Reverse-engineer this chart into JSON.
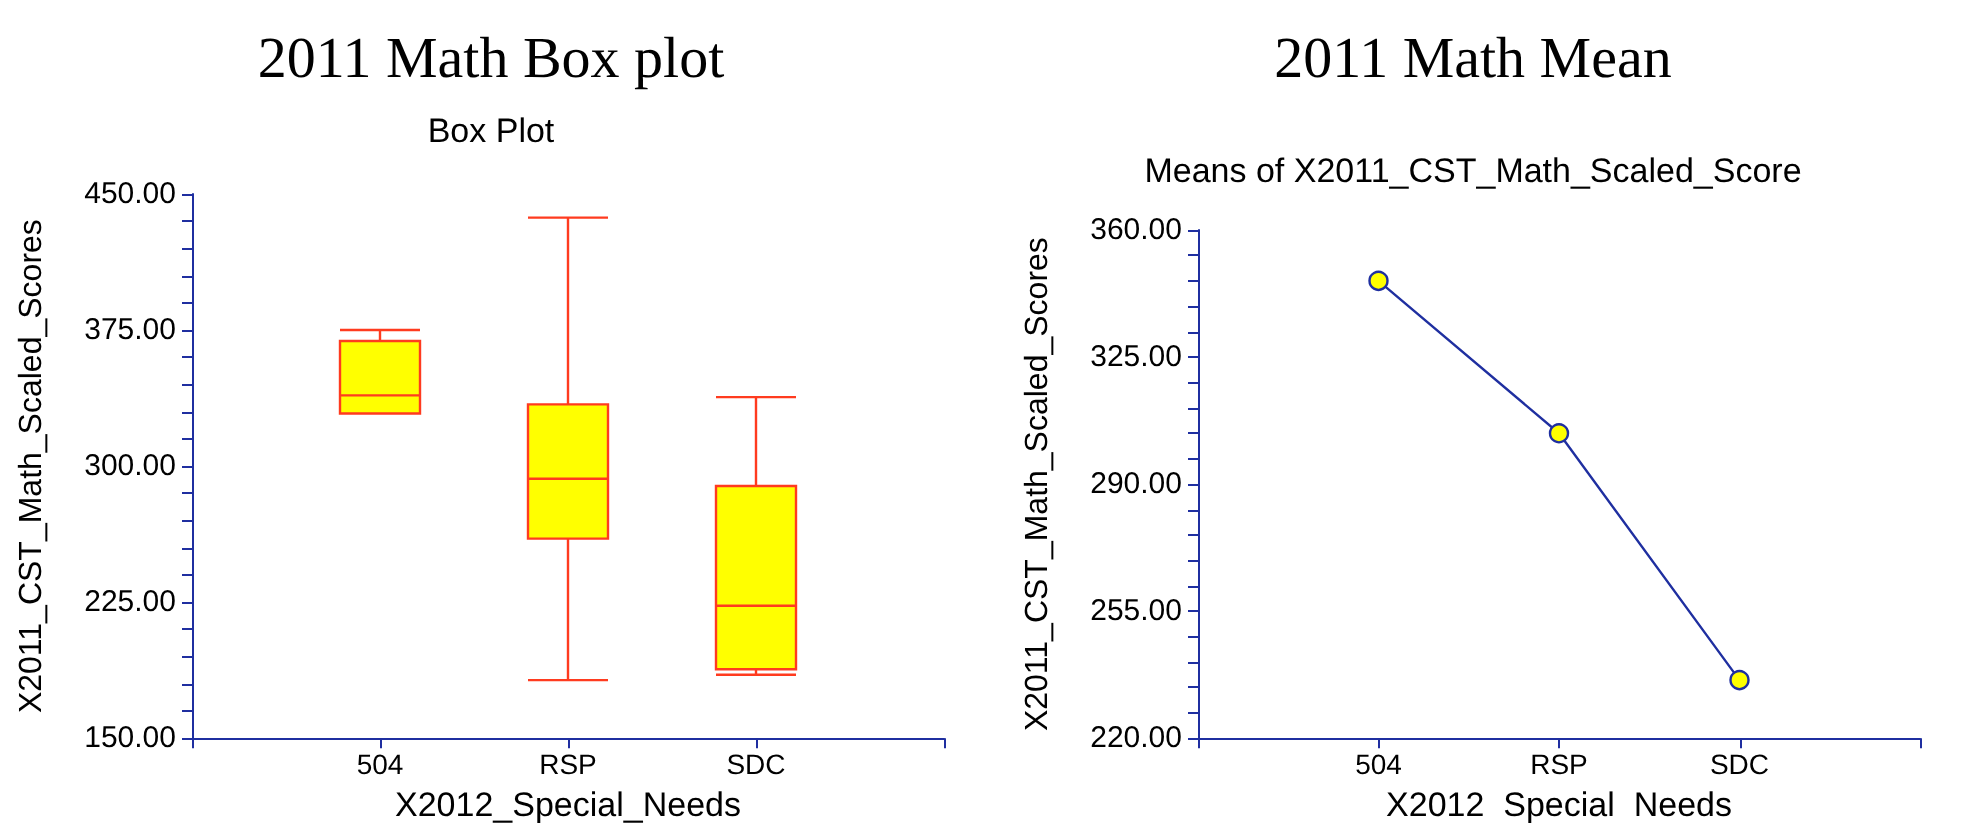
{
  "chart_data": [
    {
      "type": "box",
      "title": "2011 Math Box plot",
      "subtitle": "Box Plot",
      "xlabel": "X2012_Special_Needs",
      "ylabel": "X2011_CST_Math_Scaled_Scores",
      "categories": [
        "504",
        "RSP",
        "SDC"
      ],
      "series": [
        {
          "color": "#ffff00",
          "boxes": [
            {
              "low": 329,
              "q1": 329,
              "median": 339,
              "q3": 369,
              "high": 375
            },
            {
              "low": 182,
              "q1": 260,
              "median": 293,
              "q3": 334,
              "high": 437
            },
            {
              "low": 185,
              "q1": 188,
              "median": 223,
              "q3": 289,
              "high": 338
            }
          ]
        }
      ],
      "ylim": [
        150,
        450
      ],
      "yticks": [
        {
          "value": 150,
          "label": "150.00"
        },
        {
          "value": 165,
          "label": null
        },
        {
          "value": 180,
          "label": null
        },
        {
          "value": 195,
          "label": null
        },
        {
          "value": 210,
          "label": null
        },
        {
          "value": 225,
          "label": "225.00"
        },
        {
          "value": 240,
          "label": null
        },
        {
          "value": 255,
          "label": null
        },
        {
          "value": 270,
          "label": null
        },
        {
          "value": 285,
          "label": null
        },
        {
          "value": 300,
          "label": "300.00"
        },
        {
          "value": 315,
          "label": null
        },
        {
          "value": 330,
          "label": null
        },
        {
          "value": 345,
          "label": null
        },
        {
          "value": 360,
          "label": null
        },
        {
          "value": 375,
          "label": "375.00"
        },
        {
          "value": 390,
          "label": null
        },
        {
          "value": 405,
          "label": null
        },
        {
          "value": 420,
          "label": null
        },
        {
          "value": 435,
          "label": null
        },
        {
          "value": 450,
          "label": "450.00"
        }
      ]
    },
    {
      "type": "line",
      "title": "2011 Math Mean",
      "subtitle": "Means of X2011_CST_Math_Scaled_Score",
      "xlabel": "X2012  Special  Needs",
      "ylabel": "X2011_CST_Math_Scaled_Scores",
      "categories": [
        "504",
        "RSP",
        "SDC"
      ],
      "series": [
        {
          "color": "#1f2fa0",
          "values": [
            346,
            304,
            236
          ]
        }
      ],
      "marker": "circle",
      "ylim": [
        220,
        360
      ],
      "yticks": [
        {
          "value": 220,
          "label": "220.00"
        },
        {
          "value": 227,
          "label": null
        },
        {
          "value": 234,
          "label": null
        },
        {
          "value": 241,
          "label": null
        },
        {
          "value": 248,
          "label": null
        },
        {
          "value": 255,
          "label": "255.00"
        },
        {
          "value": 262,
          "label": null
        },
        {
          "value": 269,
          "label": null
        },
        {
          "value": 276,
          "label": null
        },
        {
          "value": 283,
          "label": null
        },
        {
          "value": 290,
          "label": "290.00"
        },
        {
          "value": 297,
          "label": null
        },
        {
          "value": 304,
          "label": null
        },
        {
          "value": 311,
          "label": null
        },
        {
          "value": 318,
          "label": null
        },
        {
          "value": 325,
          "label": "325.00"
        },
        {
          "value": 332,
          "label": null
        },
        {
          "value": 339,
          "label": null
        },
        {
          "value": 346,
          "label": null
        },
        {
          "value": 353,
          "label": null
        },
        {
          "value": 360,
          "label": "360.00"
        }
      ]
    }
  ]
}
